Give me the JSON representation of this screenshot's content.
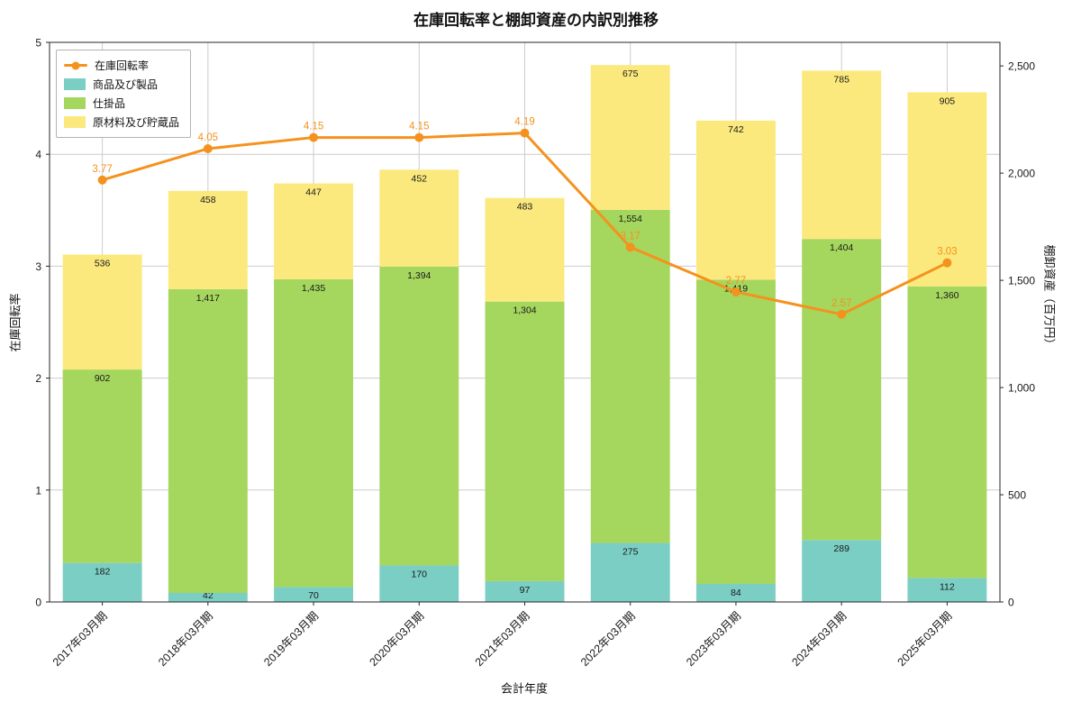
{
  "chart_data": {
    "type": "bar",
    "stacked": true,
    "title": "在庫回転率と棚卸資産の内訳別推移",
    "xlabel": "会計年度",
    "ylabel_left": "在庫回転率",
    "ylabel_right": "棚卸資産（百万円）",
    "categories": [
      "2017年03月期",
      "2018年03月期",
      "2019年03月期",
      "2020年03月期",
      "2021年03月期",
      "2022年03月期",
      "2023年03月期",
      "2024年03月期",
      "2025年03月期"
    ],
    "series": [
      {
        "name": "商品及び製品",
        "color": "#7bcec3",
        "values": [
          182,
          42,
          70,
          170,
          97,
          275,
          84,
          289,
          112
        ]
      },
      {
        "name": "仕掛品",
        "color": "#a5d65e",
        "values": [
          902,
          1417,
          1435,
          1394,
          1304,
          1554,
          1419,
          1404,
          1360
        ]
      },
      {
        "name": "原材料及び貯蔵品",
        "color": "#fbe97d",
        "values": [
          536,
          458,
          447,
          452,
          483,
          675,
          742,
          785,
          905
        ]
      }
    ],
    "line_series": {
      "name": "在庫回転率",
      "color": "#f5921e",
      "values": [
        3.77,
        4.05,
        4.15,
        4.15,
        4.19,
        3.17,
        2.77,
        2.57,
        3.03
      ],
      "axis": "left"
    },
    "left_ticks": [
      0,
      1,
      2,
      3,
      4,
      5
    ],
    "right_ticks": [
      0,
      500,
      1000,
      1500,
      2000,
      2500
    ],
    "ylim_left": [
      0,
      5
    ],
    "ylim_right": [
      0,
      2610
    ],
    "grid": true,
    "legend_position": "upper-left",
    "grid_color": "#cccccc",
    "axis_color": "#262626",
    "label_color": "#1a1a1a"
  }
}
